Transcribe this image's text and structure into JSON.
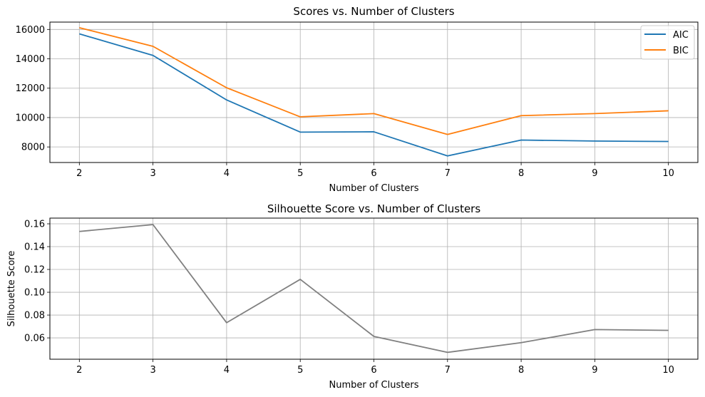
{
  "chart_data": [
    {
      "type": "line",
      "title": "Scores vs. Number of Clusters",
      "xlabel": "Number of Clusters",
      "ylabel": "",
      "x": [
        2,
        3,
        4,
        5,
        6,
        7,
        8,
        9,
        10
      ],
      "xlim": [
        1.6,
        10.4
      ],
      "ylim": [
        6940,
        16500
      ],
      "xticks": [
        2,
        3,
        4,
        5,
        6,
        7,
        8,
        9,
        10
      ],
      "yticks": [
        8000,
        10000,
        12000,
        14000,
        16000
      ],
      "grid": true,
      "legend": "top-right",
      "series": [
        {
          "name": "AIC",
          "color": "#1f77b4",
          "values": [
            15700,
            14230,
            11200,
            9010,
            9030,
            7390,
            8470,
            8400,
            8370
          ]
        },
        {
          "name": "BIC",
          "color": "#ff7f0e",
          "values": [
            16120,
            14850,
            12030,
            10050,
            10270,
            8850,
            10130,
            10270,
            10460
          ]
        }
      ]
    },
    {
      "type": "line",
      "title": "Silhouette Score vs. Number of Clusters",
      "xlabel": "Number of Clusters",
      "ylabel": "Silhouette Score",
      "x": [
        2,
        3,
        4,
        5,
        6,
        7,
        8,
        9,
        10
      ],
      "xlim": [
        1.6,
        10.4
      ],
      "ylim": [
        0.0413,
        0.165
      ],
      "xticks": [
        2,
        3,
        4,
        5,
        6,
        7,
        8,
        9,
        10
      ],
      "yticks": [
        0.06,
        0.08,
        0.1,
        0.12,
        0.14,
        0.16
      ],
      "ytick_labels": [
        "0.06",
        "0.08",
        "0.10",
        "0.12",
        "0.14",
        "0.16"
      ],
      "grid": true,
      "series": [
        {
          "color": "#808080",
          "values": [
            0.1533,
            0.1593,
            0.0733,
            0.1113,
            0.0613,
            0.0473,
            0.0558,
            0.0673,
            0.0666
          ]
        }
      ]
    }
  ]
}
